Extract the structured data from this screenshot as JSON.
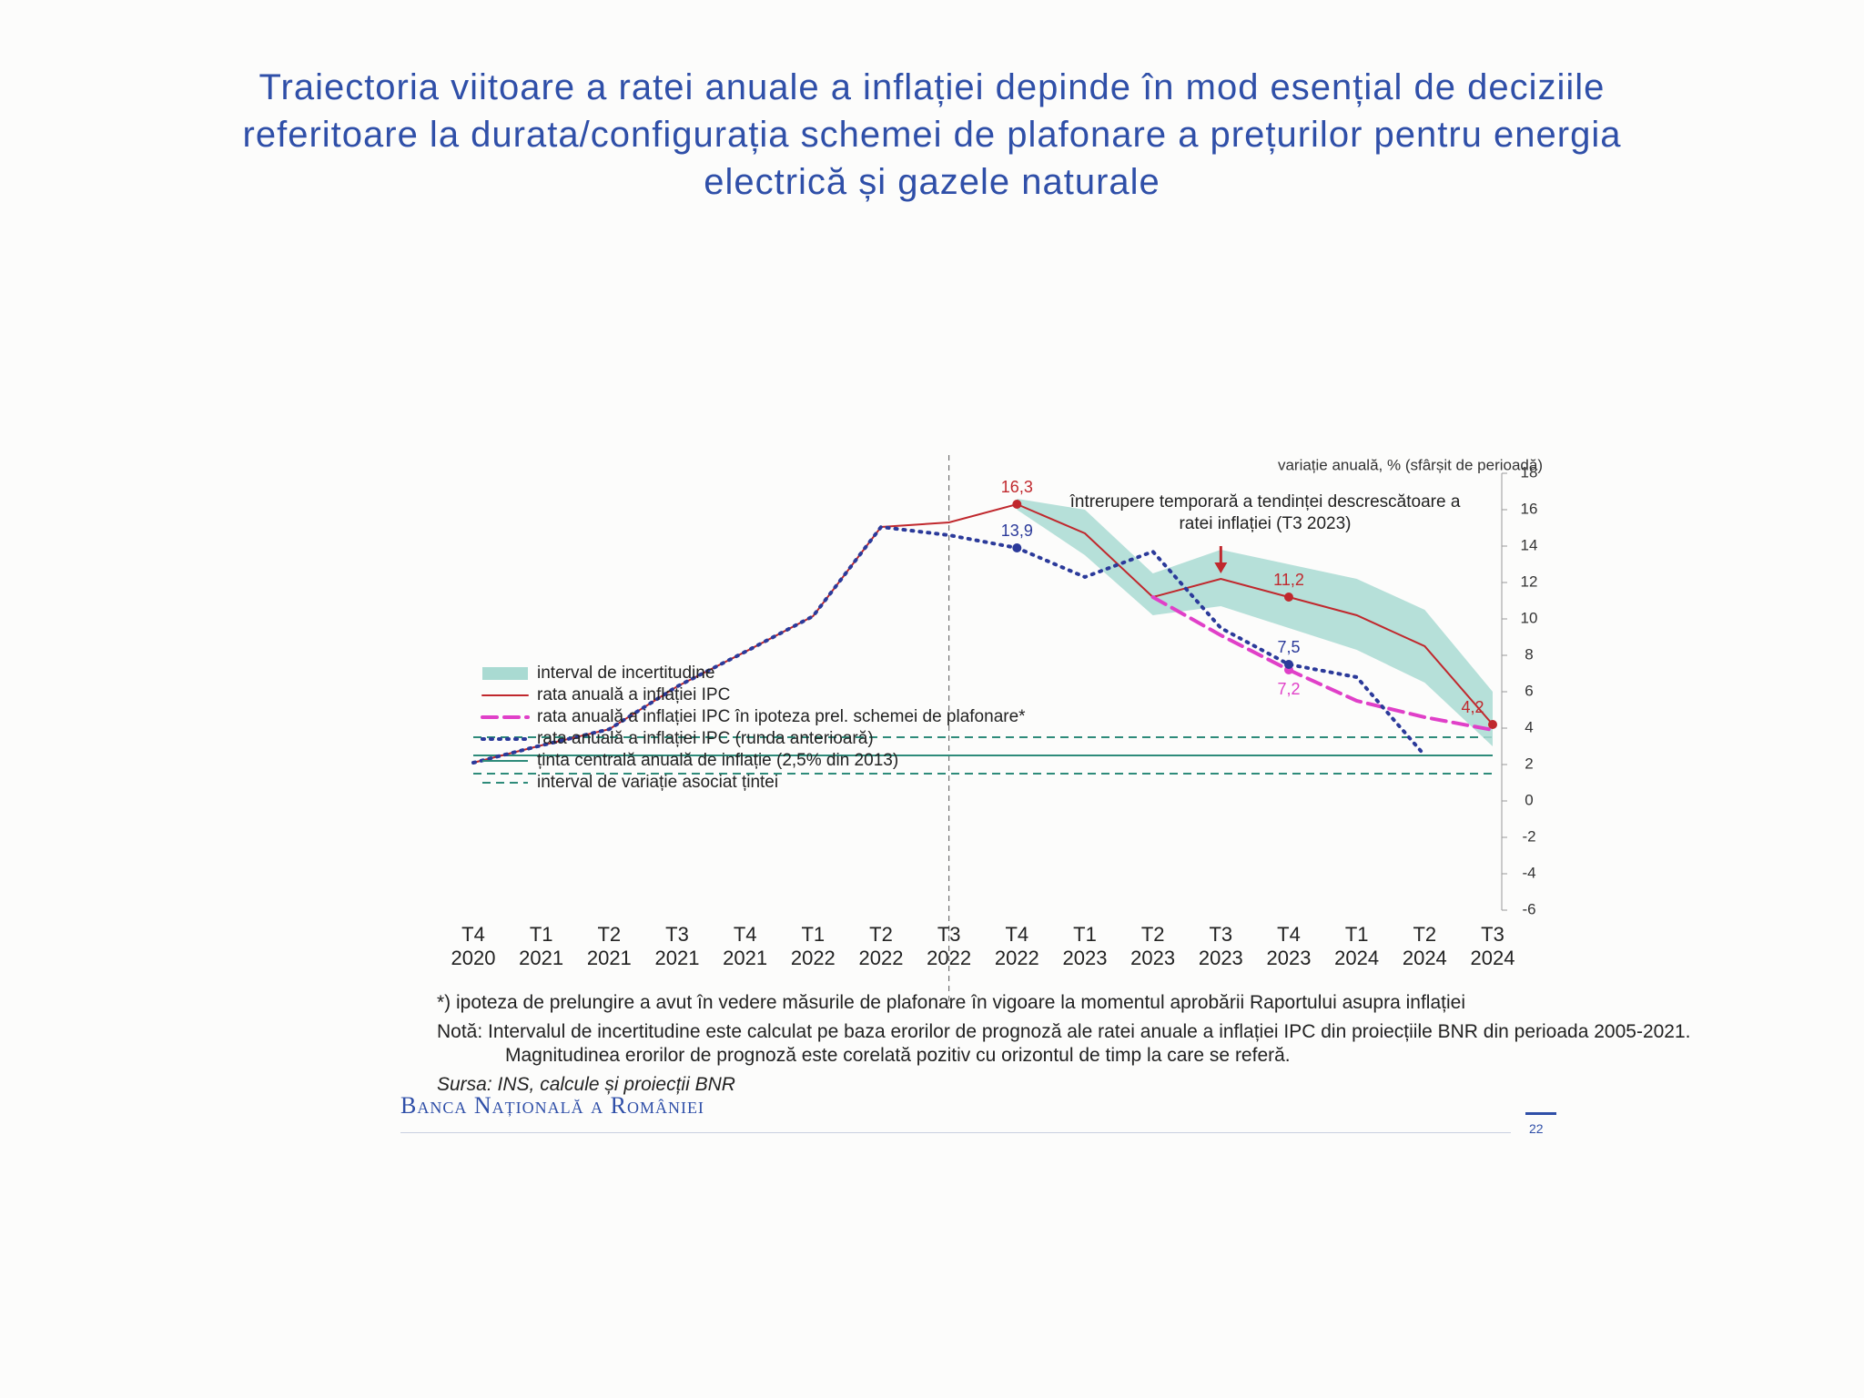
{
  "slide": {
    "title": "Traiectoria viitoare a ratei anuale a inflației depinde în mod esențial de deciziile referitoare la durata/configurația schemei de plafonare a prețurilor pentru energia electrică și gazele naturale",
    "footnote": "*) ipoteza de prelungire a avut în vedere măsurile de plafonare în vigoare la momentul aprobării Raportului asupra inflației",
    "note": [
      "Notă: Intervalul de incertitudine este calculat pe baza erorilor de prognoză ale ratei anuale a inflației IPC din proiecțiile BNR din perioada 2005-2021.",
      "Magnitudinea erorilor de prognoză este corelată pozitiv cu orizontul de timp la care se referă."
    ],
    "source": "Sursa: INS, calcule și proiecții BNR",
    "logo": "Banca Națională a României",
    "page_number": "22"
  },
  "chart_data": {
    "type": "line",
    "y_label": "variație anuală, % (sfârșit de perioadă)",
    "annotation": "întrerupere temporară a tendinței descrescătoare a ratei inflației (T3 2023)",
    "categories": [
      "T4 2020",
      "T1 2021",
      "T2 2021",
      "T3 2021",
      "T4 2021",
      "T1 2022",
      "T2 2022",
      "T3 2022",
      "T4 2022",
      "T1 2023",
      "T2 2023",
      "T3 2023",
      "T4 2023",
      "T1 2024",
      "T2 2024",
      "T3 2024"
    ],
    "ylim": [
      -6,
      18
    ],
    "yticks": [
      -6,
      -4,
      -2,
      0,
      2,
      4,
      6,
      8,
      10,
      12,
      14,
      16,
      18
    ],
    "band": {
      "name": "interval de incertitudine",
      "color": "#a9dad2",
      "lower": [
        null,
        null,
        null,
        null,
        null,
        null,
        null,
        null,
        16.0,
        13.5,
        10.2,
        10.7,
        9.5,
        8.3,
        6.5,
        3.0
      ],
      "upper": [
        null,
        null,
        null,
        null,
        null,
        null,
        null,
        null,
        16.6,
        16.0,
        12.5,
        13.8,
        13.0,
        12.2,
        10.5,
        6.0
      ]
    },
    "series": [
      {
        "name": "rata anuală a inflației IPC",
        "color": "#c0282d",
        "dash": "solid",
        "values": [
          2.1,
          3.05,
          3.94,
          6.29,
          8.19,
          10.15,
          15.05,
          15.3,
          16.3,
          14.7,
          11.2,
          12.2,
          11.2,
          10.2,
          8.5,
          4.2
        ],
        "value_labels": [
          null,
          null,
          null,
          null,
          null,
          null,
          null,
          null,
          "16,3",
          null,
          null,
          null,
          "11,2",
          null,
          null,
          "4,2"
        ]
      },
      {
        "name": "rata anuală a inflației IPC în ipoteza prel. schemei de plafonare*",
        "color": "#e040c8",
        "dash": "dashed",
        "values": [
          null,
          null,
          null,
          null,
          null,
          null,
          null,
          null,
          null,
          null,
          11.2,
          9.1,
          7.2,
          5.5,
          4.6,
          3.9
        ],
        "value_labels": [
          null,
          null,
          null,
          null,
          null,
          null,
          null,
          null,
          null,
          null,
          null,
          null,
          "7,2",
          null,
          null,
          null
        ]
      },
      {
        "name": "rata anuală a inflației IPC (runda anterioară)",
        "color": "#2b3a9a",
        "dash": "dotted",
        "values": [
          2.1,
          3.05,
          3.94,
          6.29,
          8.19,
          10.15,
          15.05,
          14.6,
          13.9,
          12.3,
          13.7,
          9.5,
          7.5,
          6.8,
          2.5,
          null
        ],
        "value_labels": [
          null,
          null,
          null,
          null,
          null,
          null,
          null,
          null,
          "13,9",
          null,
          null,
          null,
          "7,5",
          null,
          null,
          null
        ]
      }
    ],
    "target": {
      "name": "ținta centrală anuală de inflație (2,5% din 2013)",
      "color": "#2e8b7a",
      "value": 2.5
    },
    "target_interval": {
      "name": "interval de variație asociat țintei",
      "color": "#2e8b7a",
      "lower": 1.5,
      "upper": 3.5
    }
  }
}
